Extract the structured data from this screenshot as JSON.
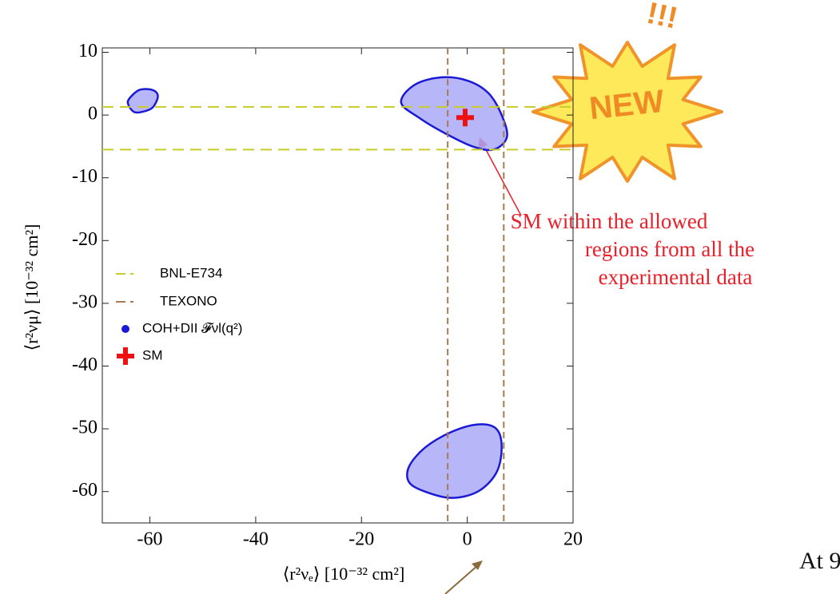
{
  "chart_data": {
    "type": "contour",
    "x_label": "⟨r²νₑ⟩ [10⁻³² cm²]",
    "y_label": "⟨r²νμ⟩ [10⁻³² cm²]",
    "xlim": [
      -69,
      20
    ],
    "ylim": [
      -65,
      10.7
    ],
    "xticks": [
      -60,
      -40,
      -20,
      0,
      20
    ],
    "yticks": [
      10,
      0,
      -10,
      -20,
      -30,
      -40,
      -50,
      -60
    ],
    "grid": false,
    "legend": "left",
    "series": [
      {
        "name": "BNL-E734",
        "kind": "hline",
        "color": "#c8cc2a",
        "values": [
          1.3,
          -5.5
        ]
      },
      {
        "name": "TEXONO",
        "kind": "vline",
        "color": "#a87c50",
        "x": [
          -3.7,
          6.9
        ]
      },
      {
        "name": "COH+DII 𝓕νl(q²)",
        "kind": "region",
        "color": "#a9a9f7",
        "edge": "#1a1ad6",
        "contours": [
          {
            "x": [
              -64,
              -62,
              -59.5,
              -58.5,
              -59.5,
              -61.5,
              -63,
              -64
            ],
            "values": [
              2.5,
              4,
              4,
              3,
              1.2,
              0.5,
              0.5,
              1.5
            ]
          },
          {
            "x": [
              -12.5,
              -10,
              -5,
              0,
              4,
              6.5,
              7.5,
              5,
              1,
              -4,
              -9
            ],
            "values": [
              2,
              4.8,
              6,
              5.5,
              3.5,
              0,
              -3.5,
              -5.5,
              -5,
              -3,
              -0.5
            ]
          },
          {
            "x": [
              -11,
              -8,
              -3,
              2,
              5.5,
              6.5,
              5.5,
              2,
              -3,
              -8,
              -11
            ],
            "values": [
              -56,
              -53,
              -50.5,
              -49.3,
              -50,
              -53,
              -57,
              -60,
              -61,
              -60,
              -58.5
            ]
          }
        ]
      },
      {
        "name": "SM",
        "kind": "point",
        "color": "#ee1111",
        "x": [
          -0.4
        ],
        "values": [
          -0.4
        ]
      }
    ],
    "annotations": {
      "sm_note": [
        "SM within the allowed",
        "regions from all the",
        "experimental data"
      ],
      "badge": "NEW",
      "exclaim": "!!!",
      "footer": "At 9"
    }
  }
}
